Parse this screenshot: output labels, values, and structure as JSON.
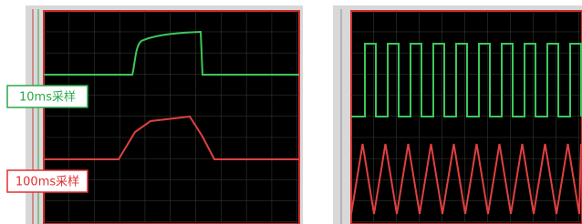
{
  "labels": {
    "green": "10ms采样",
    "red": "100ms采样"
  }
}
